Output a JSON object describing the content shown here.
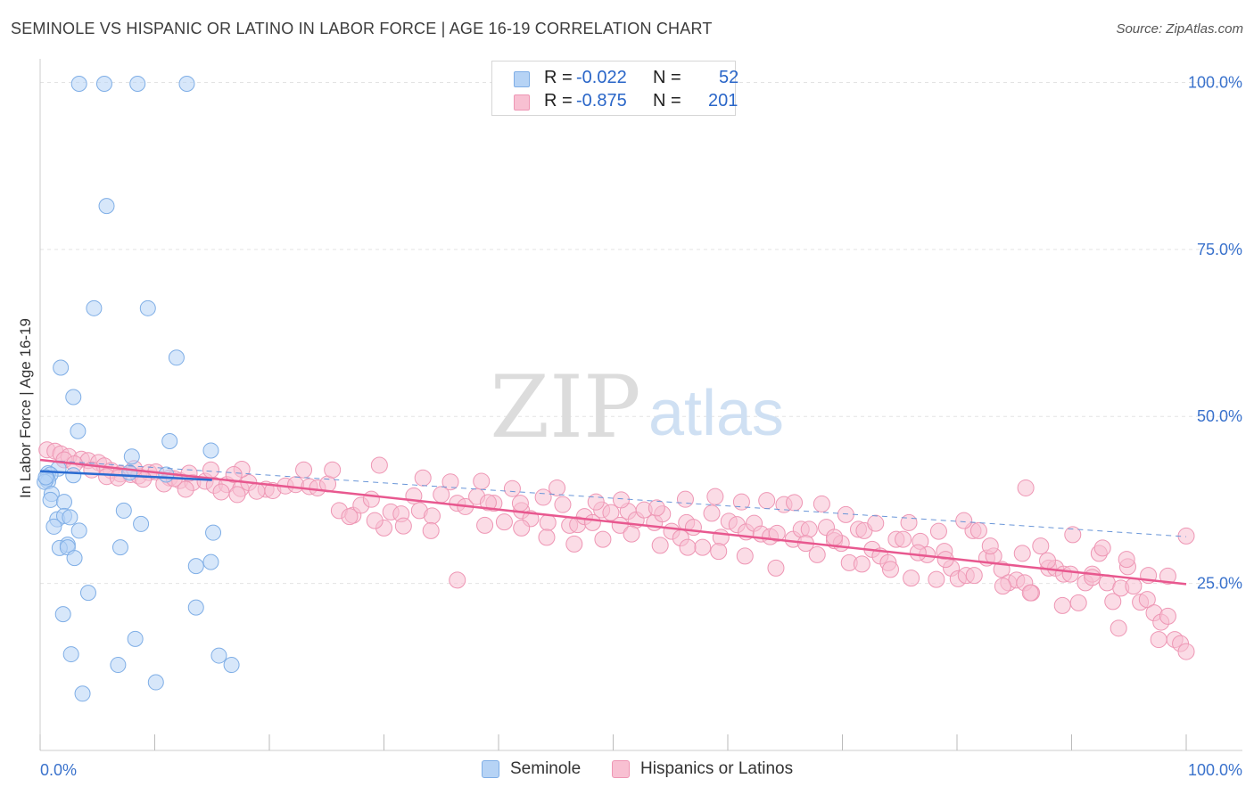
{
  "title": "SEMINOLE VS HISPANIC OR LATINO IN LABOR FORCE | AGE 16-19 CORRELATION CHART",
  "source": "Source: ZipAtlas.com",
  "watermark": {
    "zip": "ZIP",
    "atlas": "atlas"
  },
  "legend": {
    "rows": [
      {
        "r_label": "R =",
        "r_value": "-0.022",
        "n_label": "N =",
        "n_value": "52"
      },
      {
        "r_label": "R =",
        "r_value": "-0.875",
        "n_label": "N =",
        "n_value": "201"
      }
    ]
  },
  "colors": {
    "seminole_fill": "#b6d3f5",
    "seminole_stroke": "#7faee6",
    "seminole_line": "#2a6bd1",
    "hispanic_fill": "#f8c0d2",
    "hispanic_stroke": "#ee96b4",
    "hispanic_line": "#e8588f",
    "axis_text": "#3a72cc",
    "grid": "#e3e3e3"
  },
  "chart_data": {
    "type": "scatter",
    "title": "SEMINOLE VS HISPANIC OR LATINO IN LABOR FORCE | AGE 16-19 CORRELATION CHART",
    "xlabel": "",
    "ylabel": "In Labor Force | Age 16-19",
    "xlim": [
      0,
      100
    ],
    "ylim": [
      0,
      103
    ],
    "x_tick_labels": [
      "0.0%",
      "100.0%"
    ],
    "y_ticks": [
      25,
      50,
      75,
      100
    ],
    "y_tick_labels": [
      "25.0%",
      "50.0%",
      "75.0%",
      "100.0%"
    ],
    "grid": true,
    "legend_position": "bottom",
    "series": [
      {
        "name": "Seminole",
        "R": -0.022,
        "N": 52,
        "trend": {
          "x": [
            0,
            15
          ],
          "y": [
            41.8,
            40.5
          ]
        },
        "points": [
          [
            3.4,
            99.8
          ],
          [
            5.6,
            99.8
          ],
          [
            8.5,
            99.8
          ],
          [
            12.8,
            99.8
          ],
          [
            5.8,
            81.5
          ],
          [
            4.7,
            66.2
          ],
          [
            9.4,
            66.2
          ],
          [
            11.9,
            58.8
          ],
          [
            1.8,
            57.3
          ],
          [
            2.9,
            52.9
          ],
          [
            3.3,
            47.8
          ],
          [
            11.3,
            46.3
          ],
          [
            14.9,
            44.9
          ],
          [
            8.0,
            44.0
          ],
          [
            1.6,
            42.2
          ],
          [
            0.7,
            41.5
          ],
          [
            0.9,
            41.3
          ],
          [
            0.6,
            40.7
          ],
          [
            0.7,
            40.3
          ],
          [
            2.9,
            41.2
          ],
          [
            0.4,
            40.2
          ],
          [
            7.8,
            41.6
          ],
          [
            11.0,
            41.3
          ],
          [
            1.0,
            38.4
          ],
          [
            0.9,
            37.5
          ],
          [
            2.1,
            37.2
          ],
          [
            7.3,
            35.9
          ],
          [
            1.5,
            34.6
          ],
          [
            2.1,
            35.1
          ],
          [
            2.6,
            34.9
          ],
          [
            8.8,
            33.9
          ],
          [
            1.2,
            33.5
          ],
          [
            3.4,
            32.9
          ],
          [
            15.1,
            32.6
          ],
          [
            2.4,
            30.8
          ],
          [
            1.7,
            30.3
          ],
          [
            2.4,
            30.4
          ],
          [
            7.0,
            30.4
          ],
          [
            3.0,
            28.8
          ],
          [
            14.9,
            28.2
          ],
          [
            13.6,
            27.6
          ],
          [
            4.2,
            23.6
          ],
          [
            13.6,
            21.4
          ],
          [
            2.0,
            20.4
          ],
          [
            8.3,
            16.7
          ],
          [
            2.7,
            14.4
          ],
          [
            6.8,
            12.8
          ],
          [
            15.6,
            14.2
          ],
          [
            16.7,
            12.8
          ],
          [
            10.1,
            10.2
          ],
          [
            3.7,
            8.5
          ],
          [
            0.5,
            40.9
          ]
        ]
      },
      {
        "name": "Hispanics or Latinos",
        "R": -0.875,
        "N": 201,
        "trend": {
          "x": [
            0,
            100
          ],
          "y": [
            43.5,
            24.9
          ]
        },
        "dashed_extension": {
          "x": [
            0,
            100
          ],
          "y": [
            43.5,
            32.0
          ]
        },
        "points": [
          [
            0.6,
            45.0
          ],
          [
            1.3,
            44.8
          ],
          [
            1.8,
            44.4
          ],
          [
            2.5,
            44.0
          ],
          [
            3.6,
            43.6
          ],
          [
            4.2,
            43.4
          ],
          [
            5.1,
            43.1
          ],
          [
            5.6,
            42.6
          ],
          [
            4.5,
            42.0
          ],
          [
            6.2,
            41.9
          ],
          [
            7.0,
            41.4
          ],
          [
            7.9,
            41.3
          ],
          [
            8.6,
            41.1
          ],
          [
            9.5,
            41.6
          ],
          [
            10.1,
            41.7
          ],
          [
            11.3,
            40.8
          ],
          [
            12.2,
            40.4
          ],
          [
            13.3,
            40.1
          ],
          [
            14.4,
            40.3
          ],
          [
            15.2,
            39.7
          ],
          [
            16.3,
            39.8
          ],
          [
            17.5,
            39.2
          ],
          [
            18.2,
            40.1
          ],
          [
            19.7,
            39.1
          ],
          [
            20.3,
            38.9
          ],
          [
            21.4,
            39.6
          ],
          [
            22.3,
            39.8
          ],
          [
            23.5,
            39.5
          ],
          [
            24.2,
            39.3
          ],
          [
            25.1,
            39.9
          ],
          [
            2.1,
            43.5
          ],
          [
            3.0,
            42.9
          ],
          [
            5.8,
            41.0
          ],
          [
            6.8,
            40.8
          ],
          [
            9.0,
            40.6
          ],
          [
            10.8,
            39.9
          ],
          [
            12.7,
            39.1
          ],
          [
            15.8,
            38.7
          ],
          [
            17.2,
            38.3
          ],
          [
            18.9,
            38.8
          ],
          [
            11.7,
            40.7
          ],
          [
            14.9,
            42.0
          ],
          [
            17.6,
            42.1
          ],
          [
            23.0,
            42.0
          ],
          [
            25.5,
            42.0
          ],
          [
            16.9,
            41.3
          ],
          [
            13.0,
            41.5
          ],
          [
            8.2,
            42.2
          ],
          [
            26.1,
            35.9
          ],
          [
            27.3,
            35.2
          ],
          [
            28.0,
            36.7
          ],
          [
            28.9,
            37.6
          ],
          [
            30.0,
            33.3
          ],
          [
            30.6,
            35.7
          ],
          [
            31.5,
            35.4
          ],
          [
            32.6,
            38.1
          ],
          [
            33.1,
            35.9
          ],
          [
            34.2,
            35.1
          ],
          [
            35.0,
            38.3
          ],
          [
            36.4,
            37.0
          ],
          [
            37.1,
            36.5
          ],
          [
            38.1,
            38.0
          ],
          [
            38.8,
            33.7
          ],
          [
            39.6,
            37.0
          ],
          [
            40.5,
            34.2
          ],
          [
            41.2,
            39.2
          ],
          [
            42.0,
            35.9
          ],
          [
            42.8,
            34.7
          ],
          [
            43.9,
            37.9
          ],
          [
            44.3,
            34.1
          ],
          [
            45.6,
            36.8
          ],
          [
            46.2,
            33.7
          ],
          [
            46.9,
            33.8
          ],
          [
            47.5,
            35.0
          ],
          [
            48.2,
            34.1
          ],
          [
            49.0,
            36.0
          ],
          [
            49.8,
            35.6
          ],
          [
            50.6,
            33.7
          ],
          [
            51.3,
            35.8
          ],
          [
            52.0,
            34.5
          ],
          [
            52.7,
            36.0
          ],
          [
            53.6,
            34.1
          ],
          [
            54.3,
            35.4
          ],
          [
            55.1,
            32.8
          ],
          [
            55.9,
            31.8
          ],
          [
            56.4,
            34.1
          ],
          [
            57.0,
            33.4
          ],
          [
            57.8,
            30.4
          ],
          [
            58.6,
            35.5
          ],
          [
            59.4,
            31.9
          ],
          [
            60.1,
            34.3
          ],
          [
            60.8,
            33.8
          ],
          [
            61.6,
            32.7
          ],
          [
            62.3,
            34.0
          ],
          [
            62.9,
            32.4
          ],
          [
            63.7,
            32.0
          ],
          [
            64.3,
            32.5
          ],
          [
            64.9,
            36.8
          ],
          [
            65.7,
            31.6
          ],
          [
            66.4,
            33.1
          ],
          [
            67.1,
            33.1
          ],
          [
            67.8,
            29.3
          ],
          [
            68.6,
            33.4
          ],
          [
            69.3,
            31.4
          ],
          [
            69.9,
            31.0
          ],
          [
            70.6,
            28.1
          ],
          [
            71.4,
            33.1
          ],
          [
            71.9,
            32.9
          ],
          [
            72.6,
            30.1
          ],
          [
            73.3,
            29.1
          ],
          [
            74.0,
            28.1
          ],
          [
            74.7,
            31.6
          ],
          [
            75.3,
            31.6
          ],
          [
            76.0,
            25.8
          ],
          [
            76.8,
            31.3
          ],
          [
            77.4,
            29.3
          ],
          [
            78.2,
            25.6
          ],
          [
            78.9,
            29.8
          ],
          [
            79.5,
            27.3
          ],
          [
            80.1,
            25.7
          ],
          [
            80.8,
            26.2
          ],
          [
            81.4,
            32.9
          ],
          [
            81.9,
            32.9
          ],
          [
            82.6,
            28.8
          ],
          [
            83.2,
            29.1
          ],
          [
            83.9,
            27.1
          ],
          [
            84.5,
            25.1
          ],
          [
            85.2,
            25.5
          ],
          [
            85.9,
            25.1
          ],
          [
            86.5,
            23.6
          ],
          [
            87.3,
            30.6
          ],
          [
            88.0,
            27.3
          ],
          [
            88.6,
            27.3
          ],
          [
            89.3,
            26.4
          ],
          [
            89.9,
            26.4
          ],
          [
            90.6,
            22.1
          ],
          [
            91.2,
            25.1
          ],
          [
            91.8,
            26.4
          ],
          [
            92.4,
            29.5
          ],
          [
            93.1,
            25.1
          ],
          [
            93.6,
            22.3
          ],
          [
            94.3,
            24.3
          ],
          [
            94.9,
            27.5
          ],
          [
            95.4,
            24.6
          ],
          [
            96.0,
            22.2
          ],
          [
            96.6,
            22.6
          ],
          [
            97.2,
            20.6
          ],
          [
            97.8,
            19.2
          ],
          [
            98.4,
            20.1
          ],
          [
            99.0,
            16.6
          ],
          [
            99.5,
            16.0
          ],
          [
            100.0,
            14.8
          ],
          [
            29.6,
            42.7
          ],
          [
            33.4,
            40.8
          ],
          [
            35.8,
            40.2
          ],
          [
            38.5,
            40.3
          ],
          [
            41.9,
            37.0
          ],
          [
            45.1,
            39.3
          ],
          [
            48.5,
            37.2
          ],
          [
            50.7,
            37.5
          ],
          [
            53.8,
            36.3
          ],
          [
            56.3,
            37.6
          ],
          [
            58.9,
            38.0
          ],
          [
            61.2,
            37.2
          ],
          [
            63.4,
            37.4
          ],
          [
            65.8,
            37.1
          ],
          [
            68.2,
            36.9
          ],
          [
            70.3,
            35.3
          ],
          [
            72.9,
            34.0
          ],
          [
            75.8,
            34.1
          ],
          [
            78.4,
            32.8
          ],
          [
            80.6,
            34.4
          ],
          [
            82.9,
            30.6
          ],
          [
            85.7,
            29.5
          ],
          [
            87.9,
            28.4
          ],
          [
            90.1,
            32.3
          ],
          [
            92.7,
            30.3
          ],
          [
            94.8,
            28.6
          ],
          [
            96.7,
            26.2
          ],
          [
            98.4,
            26.1
          ],
          [
            100.0,
            32.1
          ],
          [
            97.6,
            16.6
          ],
          [
            94.1,
            18.3
          ],
          [
            91.8,
            25.9
          ],
          [
            89.2,
            21.7
          ],
          [
            86.4,
            23.6
          ],
          [
            84.0,
            24.6
          ],
          [
            81.5,
            26.2
          ],
          [
            79.0,
            28.6
          ],
          [
            76.6,
            29.6
          ],
          [
            74.2,
            27.1
          ],
          [
            71.7,
            27.9
          ],
          [
            69.3,
            31.9
          ],
          [
            66.8,
            31.0
          ],
          [
            64.2,
            27.3
          ],
          [
            61.5,
            29.1
          ],
          [
            59.2,
            29.8
          ],
          [
            56.5,
            30.4
          ],
          [
            54.1,
            30.7
          ],
          [
            51.6,
            32.4
          ],
          [
            49.1,
            31.6
          ],
          [
            46.6,
            30.9
          ],
          [
            44.2,
            31.9
          ],
          [
            42.0,
            33.3
          ],
          [
            39.1,
            37.1
          ],
          [
            36.4,
            25.5
          ],
          [
            34.1,
            32.9
          ],
          [
            31.7,
            33.6
          ],
          [
            29.2,
            34.4
          ],
          [
            27.0,
            35.0
          ],
          [
            86.0,
            39.3
          ]
        ]
      }
    ]
  }
}
